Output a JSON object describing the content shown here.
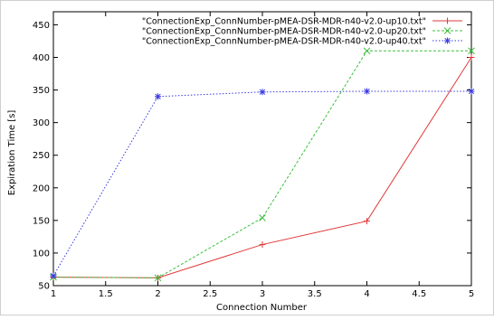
{
  "chart_data": {
    "type": "line",
    "title": "",
    "xlabel": "Connection Number",
    "ylabel": "Expiration Time [s]",
    "xlim": [
      1,
      5
    ],
    "ylim": [
      50,
      470
    ],
    "x_ticks": [
      "1",
      "1.5",
      "2",
      "2.5",
      "3",
      "3.5",
      "4",
      "4.5",
      "5"
    ],
    "y_ticks": [
      "50",
      "100",
      "150",
      "200",
      "250",
      "300",
      "350",
      "400",
      "450"
    ],
    "grid": false,
    "legend_position": "top-right",
    "series": [
      {
        "name": "\"ConnectionExp_ConnNumber-pMEA-DSR-MDR-n40-v2.0-up10.txt\"",
        "color": "#e03a3a",
        "dash": "solid",
        "marker": "plus",
        "x": [
          1,
          2,
          3,
          4,
          5
        ],
        "values": [
          63,
          62,
          113,
          149,
          400
        ]
      },
      {
        "name": "\"ConnectionExp_ConnNumber-pMEA-DSR-MDR-n40-v2.0-up20.txt\"",
        "color": "#3cbf3c",
        "dash": "dashed",
        "marker": "cross",
        "x": [
          1,
          2,
          3,
          4,
          5
        ],
        "values": [
          63,
          62,
          154,
          410,
          410
        ]
      },
      {
        "name": "\"ConnectionExp_ConnNumber-pMEA-DSR-MDR-n40-v2.0-up40.txt\"",
        "color": "#3a3ae0",
        "dash": "dotted",
        "marker": "star",
        "x": [
          1,
          2,
          3,
          4,
          5
        ],
        "values": [
          65,
          340,
          347,
          348,
          348
        ]
      }
    ]
  }
}
